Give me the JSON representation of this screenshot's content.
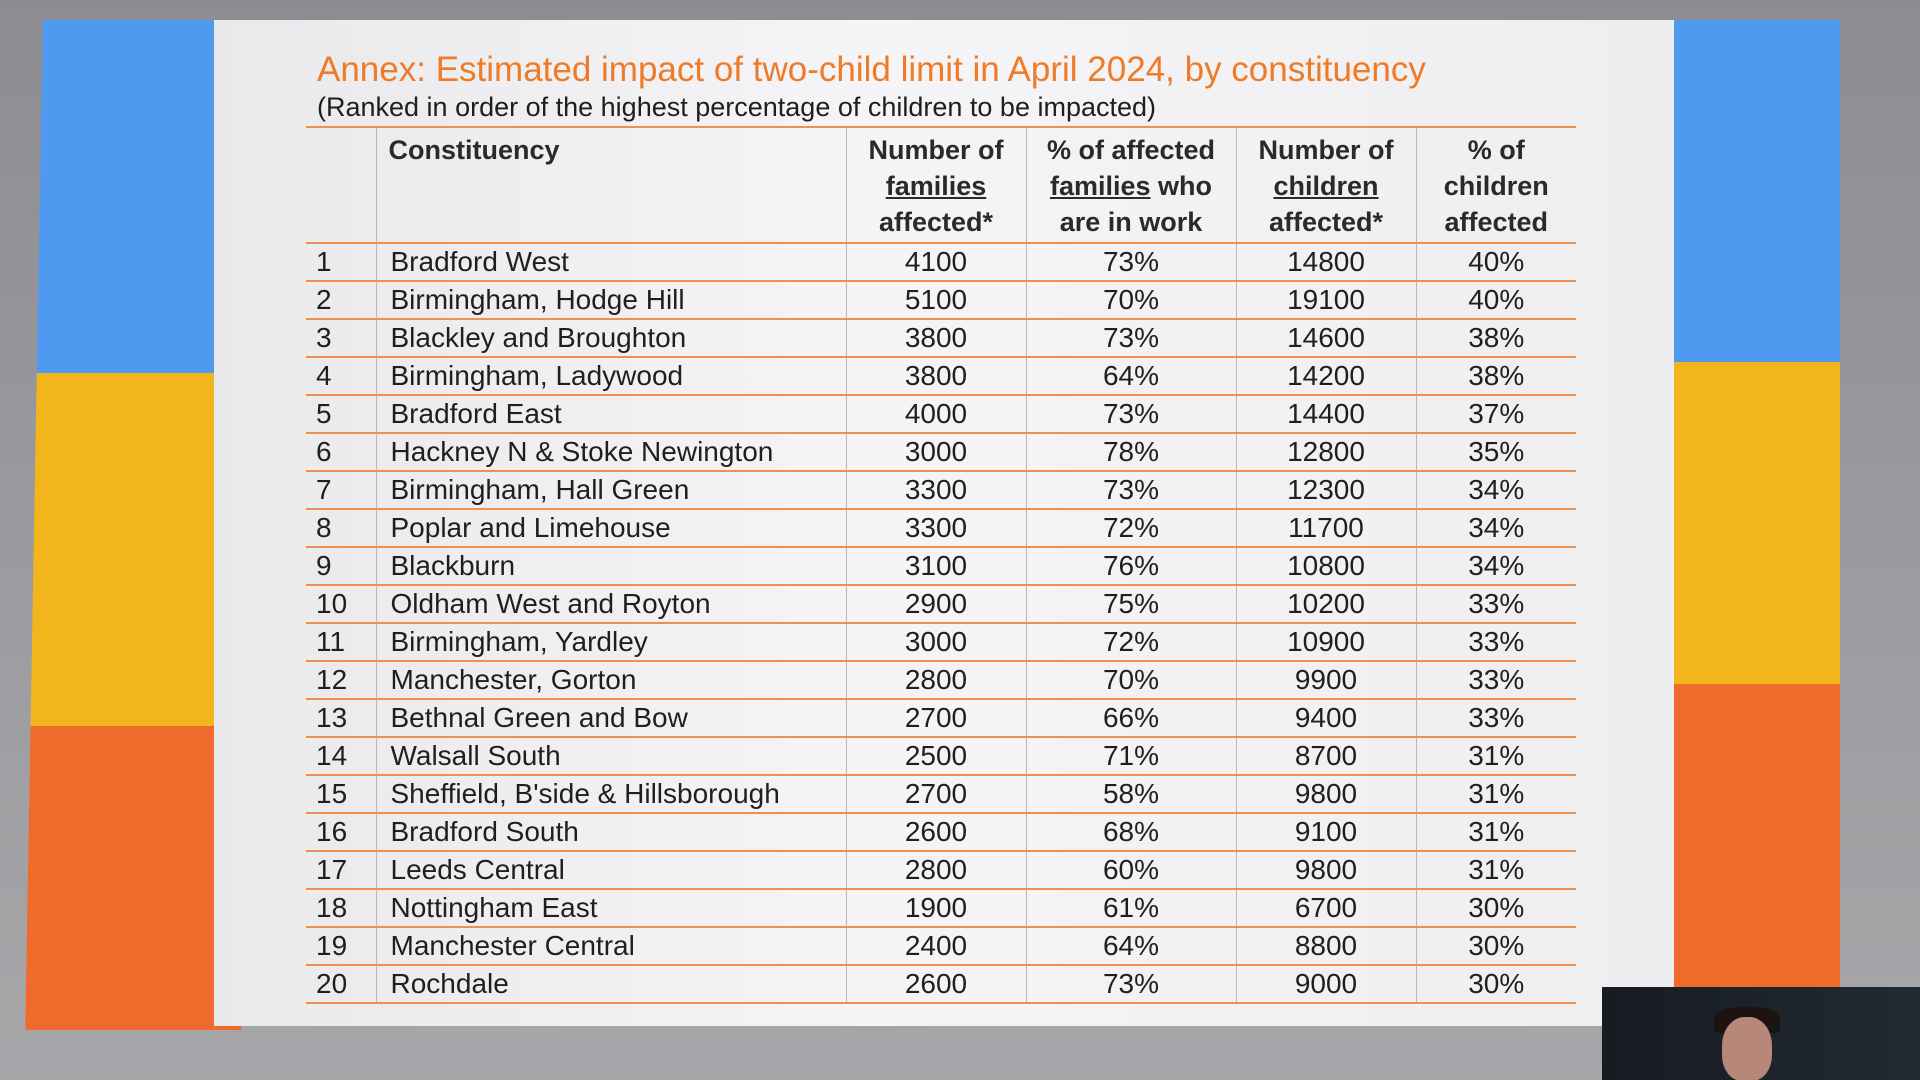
{
  "slide": {
    "title": "Annex: Estimated impact of two-child limit in April 2024, by constituency",
    "subtitle": "(Ranked in order of the highest percentage of children to be impacted)"
  },
  "table": {
    "headers": {
      "constituency": "Constituency",
      "families_1": "Number of",
      "families_2": "families",
      "families_3": "affected*",
      "in_work_1": "% of affected",
      "in_work_2": "families",
      "in_work_3": "who",
      "in_work_4": "are in work",
      "children_1": "Number of",
      "children_2": "children",
      "children_3": "affected*",
      "pct_1": "% of",
      "pct_2": "children",
      "pct_3": "affected"
    },
    "rows": [
      {
        "rank": "1",
        "constituency": "Bradford West",
        "families": "4100",
        "in_work": "73%",
        "children": "14800",
        "pct": "40%"
      },
      {
        "rank": "2",
        "constituency": "Birmingham, Hodge Hill",
        "families": "5100",
        "in_work": "70%",
        "children": "19100",
        "pct": "40%"
      },
      {
        "rank": "3",
        "constituency": "Blackley and Broughton",
        "families": "3800",
        "in_work": "73%",
        "children": "14600",
        "pct": "38%"
      },
      {
        "rank": "4",
        "constituency": "Birmingham, Ladywood",
        "families": "3800",
        "in_work": "64%",
        "children": "14200",
        "pct": "38%"
      },
      {
        "rank": "5",
        "constituency": "Bradford East",
        "families": "4000",
        "in_work": "73%",
        "children": "14400",
        "pct": "37%"
      },
      {
        "rank": "6",
        "constituency": "Hackney N & Stoke Newington",
        "families": "3000",
        "in_work": "78%",
        "children": "12800",
        "pct": "35%"
      },
      {
        "rank": "7",
        "constituency": "Birmingham, Hall Green",
        "families": "3300",
        "in_work": "73%",
        "children": "12300",
        "pct": "34%"
      },
      {
        "rank": "8",
        "constituency": "Poplar and Limehouse",
        "families": "3300",
        "in_work": "72%",
        "children": "11700",
        "pct": "34%"
      },
      {
        "rank": "9",
        "constituency": "Blackburn",
        "families": "3100",
        "in_work": "76%",
        "children": "10800",
        "pct": "34%"
      },
      {
        "rank": "10",
        "constituency": "Oldham West and Royton",
        "families": "2900",
        "in_work": "75%",
        "children": "10200",
        "pct": "33%"
      },
      {
        "rank": "11",
        "constituency": "Birmingham, Yardley",
        "families": "3000",
        "in_work": "72%",
        "children": "10900",
        "pct": "33%"
      },
      {
        "rank": "12",
        "constituency": "Manchester, Gorton",
        "families": "2800",
        "in_work": "70%",
        "children": "9900",
        "pct": "33%"
      },
      {
        "rank": "13",
        "constituency": "Bethnal Green and Bow",
        "families": "2700",
        "in_work": "66%",
        "children": "9400",
        "pct": "33%"
      },
      {
        "rank": "14",
        "constituency": "Walsall South",
        "families": "2500",
        "in_work": "71%",
        "children": "8700",
        "pct": "31%"
      },
      {
        "rank": "15",
        "constituency": "Sheffield, B'side & Hillsborough",
        "families": "2700",
        "in_work": "58%",
        "children": "9800",
        "pct": "31%"
      },
      {
        "rank": "16",
        "constituency": "Bradford South",
        "families": "2600",
        "in_work": "68%",
        "children": "9100",
        "pct": "31%"
      },
      {
        "rank": "17",
        "constituency": "Leeds Central",
        "families": "2800",
        "in_work": "60%",
        "children": "9800",
        "pct": "31%"
      },
      {
        "rank": "18",
        "constituency": "Nottingham East",
        "families": "1900",
        "in_work": "61%",
        "children": "6700",
        "pct": "30%"
      },
      {
        "rank": "19",
        "constituency": "Manchester Central",
        "families": "2400",
        "in_work": "64%",
        "children": "8800",
        "pct": "30%"
      },
      {
        "rank": "20",
        "constituency": "Rochdale",
        "families": "2600",
        "in_work": "73%",
        "children": "9000",
        "pct": "30%"
      }
    ]
  },
  "colors": {
    "title": "#ef7a28",
    "rule": "#ef9050",
    "band_blue": "#4f9af0",
    "band_yellow": "#f2b51c",
    "band_orange": "#f06a2c"
  }
}
